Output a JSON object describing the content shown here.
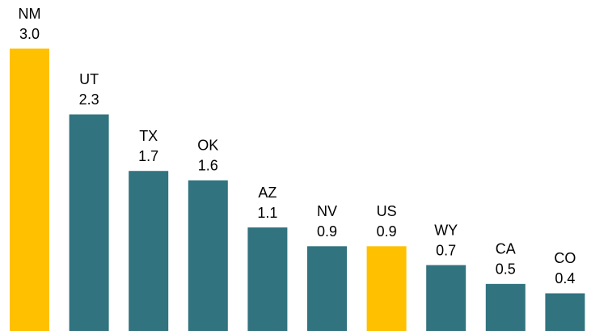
{
  "chart_data": {
    "type": "bar",
    "categories": [
      "NM",
      "UT",
      "TX",
      "OK",
      "AZ",
      "NV",
      "US",
      "WY",
      "CA",
      "CO"
    ],
    "values": [
      3.0,
      2.3,
      1.7,
      1.6,
      1.1,
      0.9,
      0.9,
      0.7,
      0.5,
      0.4
    ],
    "value_labels": [
      "3.0",
      "2.3",
      "1.7",
      "1.6",
      "1.1",
      "0.9",
      "0.9",
      "0.7",
      "0.5",
      "0.4"
    ],
    "colors": [
      "#ffc000",
      "#31737f",
      "#31737f",
      "#31737f",
      "#31737f",
      "#31737f",
      "#ffc000",
      "#31737f",
      "#31737f",
      "#31737f"
    ]
  }
}
